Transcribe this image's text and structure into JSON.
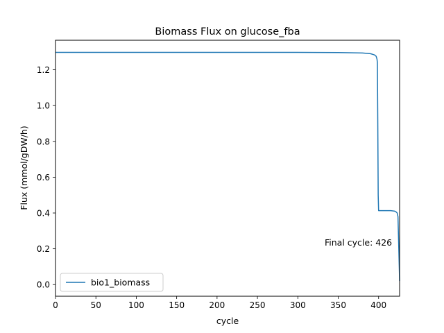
{
  "chart_data": {
    "type": "line",
    "title": "Biomass Flux on glucose_fba",
    "xlabel": "cycle",
    "ylabel": "Flux (mmol/gDW/h)",
    "xlim": [
      0,
      426
    ],
    "ylim": [
      -0.065,
      1.365
    ],
    "xticks": [
      0,
      50,
      100,
      150,
      200,
      250,
      300,
      350,
      400
    ],
    "xtick_labels": [
      "0",
      "50",
      "100",
      "150",
      "200",
      "250",
      "300",
      "350",
      "400"
    ],
    "yticks": [
      0.0,
      0.2,
      0.4,
      0.6,
      0.8,
      1.0,
      1.2
    ],
    "ytick_labels": [
      "0.0",
      "0.2",
      "0.4",
      "0.6",
      "0.8",
      "1.0",
      "1.2"
    ],
    "grid": false,
    "legend_position": "lower-left",
    "annotation": "Final cycle: 426",
    "series": [
      {
        "name": "bio1_biomass",
        "color": "#1f77b4",
        "x": [
          0,
          100,
          200,
          300,
          350,
          380,
          390,
          395,
          397,
          398,
          398.5,
          399,
          399.5,
          400,
          405,
          410,
          415,
          420,
          422,
          423,
          424,
          425,
          426
        ],
        "y": [
          1.297,
          1.297,
          1.297,
          1.297,
          1.296,
          1.294,
          1.29,
          1.283,
          1.275,
          1.26,
          1.24,
          0.9,
          0.5,
          0.413,
          0.413,
          0.413,
          0.413,
          0.41,
          0.405,
          0.4,
          0.38,
          0.2,
          0.02
        ]
      }
    ]
  }
}
